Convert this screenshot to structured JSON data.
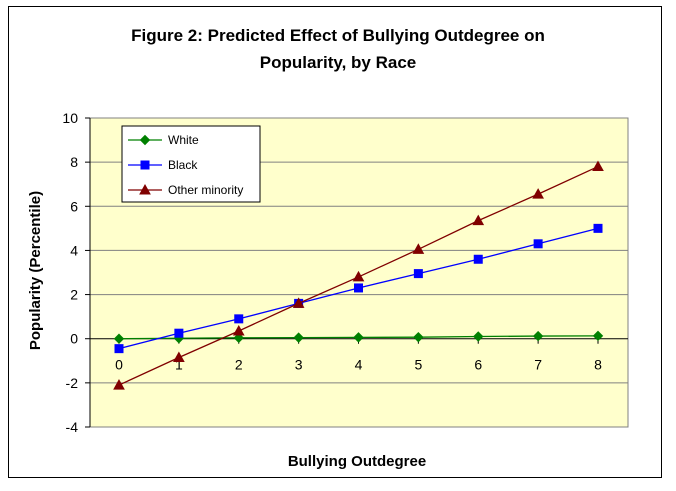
{
  "chart_data": {
    "type": "line",
    "title_line1": "Figure 2:  Predicted Effect of Bullying Outdegree on",
    "title_line2": "Popularity, by Race",
    "xlabel": "Bullying Outdegree",
    "ylabel": "Popularity (Percentile)",
    "x": [
      0,
      1,
      2,
      3,
      4,
      5,
      6,
      7,
      8
    ],
    "xlim": [
      0,
      8
    ],
    "ylim": [
      -4,
      10
    ],
    "yticks": [
      -4,
      -2,
      0,
      2,
      4,
      6,
      8,
      10
    ],
    "series": [
      {
        "name": "White",
        "color": "#008000",
        "marker": "diamond",
        "values": [
          0,
          0.02,
          0.04,
          0.05,
          0.06,
          0.07,
          0.1,
          0.12,
          0.13
        ]
      },
      {
        "name": "Black",
        "color": "#0000ff",
        "marker": "square",
        "values": [
          -0.45,
          0.25,
          0.9,
          1.6,
          2.3,
          2.95,
          3.6,
          4.3,
          5.0
        ]
      },
      {
        "name": "Other minority",
        "color": "#800000",
        "marker": "triangle",
        "values": [
          -2.1,
          -0.85,
          0.35,
          1.6,
          2.8,
          4.05,
          5.35,
          6.55,
          7.8
        ]
      }
    ],
    "grid": true,
    "legend_position": "top-left",
    "plot_background": "#ffffcc"
  }
}
